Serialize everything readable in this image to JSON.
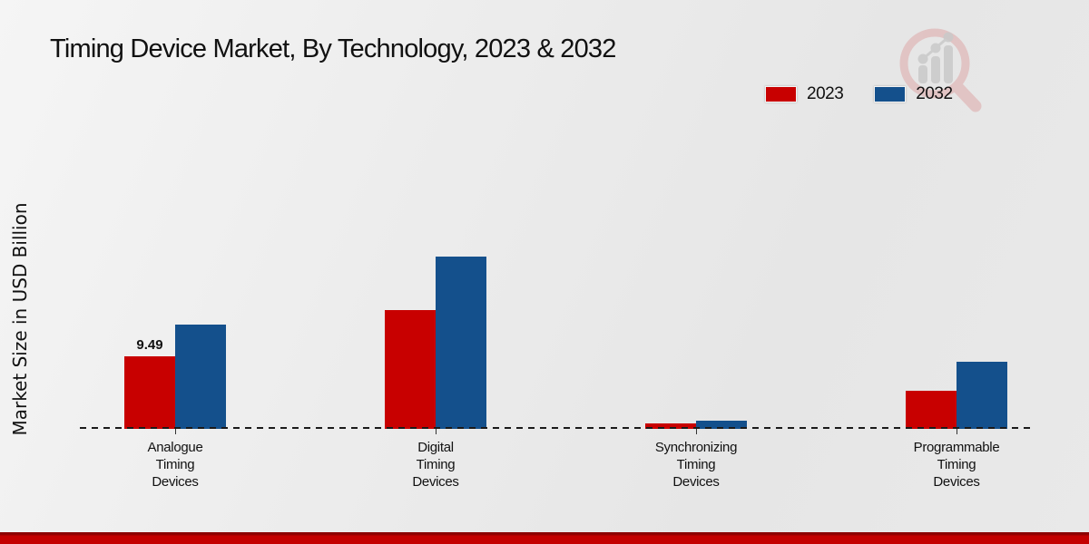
{
  "page": {
    "title": "Timing Device Market, By Technology, 2023 & 2032"
  },
  "axes": {
    "y_label": "Market Size in USD Billion"
  },
  "legend": {
    "items": [
      {
        "label": "2023",
        "color": "#c80000"
      },
      {
        "label": "2032",
        "color": "#14508c"
      }
    ]
  },
  "colors": {
    "series_2023": "#c80000",
    "series_2032": "#14508c",
    "baseline": "#1a1a1a",
    "footer_band": "#c40000",
    "footer_band_dark": "#8a0000",
    "background": "#ececec",
    "watermark_pink": "#e8c6c6",
    "watermark_gray": "#d2d2d2"
  },
  "chart_data": {
    "type": "bar",
    "title": "Timing Device Market, By Technology, 2023 & 2032",
    "xlabel": "",
    "ylabel": "Market Size in USD Billion",
    "categories": [
      "Analogue Timing Devices",
      "Digital Timing Devices",
      "Synchronizing Timing Devices",
      "Programmable Timing Devices"
    ],
    "series": [
      {
        "name": "2023",
        "color": "#c80000",
        "values": [
          9.49,
          15.5,
          0.7,
          5.0
        ]
      },
      {
        "name": "2032",
        "color": "#14508c",
        "values": [
          13.6,
          22.5,
          1.1,
          8.8
        ]
      }
    ],
    "data_labels": [
      {
        "series_index": 0,
        "category_index": 0,
        "text": "9.49"
      }
    ],
    "ylim": [
      0,
      24
    ],
    "grid": false,
    "baseline_style": "dashed",
    "legend_position": "top-right"
  },
  "watermark": {
    "name": "market-research-growth-magnifier-logo"
  }
}
